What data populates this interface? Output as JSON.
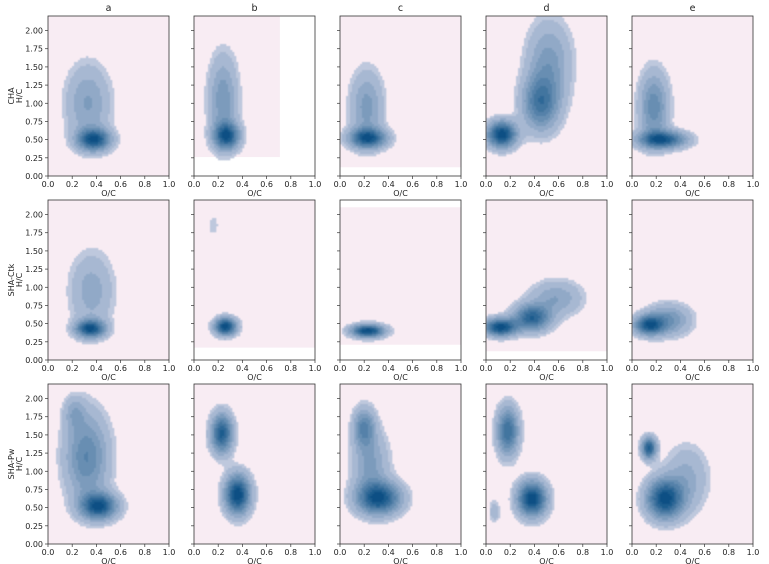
{
  "chart_data": {
    "type": "heatmap",
    "description_note": "5x3 grid of 2D kernel density estimate panels (H/C vs O/C)",
    "columns": [
      "a",
      "b",
      "c",
      "d",
      "e"
    ],
    "rows": [
      "CHA",
      "SHA-Ctk",
      "SHA-Pw"
    ],
    "xlabel": "O/C",
    "ylabel": "H/C",
    "xlim": [
      0.0,
      1.0
    ],
    "ylim": [
      0.0,
      2.2
    ],
    "xticks": [
      "0.0",
      "0.2",
      "0.4",
      "0.6",
      "0.8",
      "1.0"
    ],
    "yticks": [
      "0.00",
      "0.25",
      "0.50",
      "0.75",
      "1.00",
      "1.25",
      "1.50",
      "1.75",
      "2.00"
    ],
    "colors": {
      "background": "#f8ecf3",
      "low": "#dcdcec",
      "high": "#0b4f84",
      "frame": "#333333"
    },
    "panels": [
      {
        "row": 0,
        "col": 0,
        "bg": [
          0.0,
          1.0,
          0.0,
          2.2
        ],
        "peaks": [
          {
            "x": 0.38,
            "y": 0.5,
            "sx": 0.09,
            "sy": 0.1,
            "w": 1.0
          },
          {
            "x": 0.33,
            "y": 1.0,
            "sx": 0.12,
            "sy": 0.35,
            "w": 0.35
          }
        ]
      },
      {
        "row": 0,
        "col": 1,
        "bg": [
          0.0,
          0.71,
          0.26,
          2.2
        ],
        "peaks": [
          {
            "x": 0.27,
            "y": 0.55,
            "sx": 0.07,
            "sy": 0.12,
            "w": 1.0
          },
          {
            "x": 0.24,
            "y": 1.05,
            "sx": 0.08,
            "sy": 0.4,
            "w": 0.45
          }
        ]
      },
      {
        "row": 0,
        "col": 2,
        "bg": [
          0.0,
          1.0,
          0.12,
          2.2
        ],
        "peaks": [
          {
            "x": 0.23,
            "y": 0.52,
            "sx": 0.1,
            "sy": 0.09,
            "w": 1.0
          },
          {
            "x": 0.22,
            "y": 0.95,
            "sx": 0.09,
            "sy": 0.33,
            "w": 0.4
          }
        ]
      },
      {
        "row": 0,
        "col": 3,
        "bg": [
          0.0,
          1.0,
          0.0,
          2.2
        ],
        "peaks": [
          {
            "x": 0.13,
            "y": 0.57,
            "sx": 0.08,
            "sy": 0.12,
            "w": 1.0
          },
          {
            "x": 0.45,
            "y": 1.0,
            "sx": 0.1,
            "sy": 0.25,
            "w": 0.6
          },
          {
            "x": 0.52,
            "y": 1.55,
            "sx": 0.12,
            "sy": 0.38,
            "w": 0.35
          }
        ]
      },
      {
        "row": 0,
        "col": 4,
        "bg": [
          0.0,
          1.0,
          0.0,
          2.2
        ],
        "peaks": [
          {
            "x": 0.25,
            "y": 0.5,
            "sx": 0.13,
            "sy": 0.08,
            "w": 1.0
          },
          {
            "x": 0.18,
            "y": 0.95,
            "sx": 0.08,
            "sy": 0.32,
            "w": 0.55
          }
        ]
      },
      {
        "row": 1,
        "col": 0,
        "bg": [
          0.0,
          1.0,
          0.0,
          2.2
        ],
        "peaks": [
          {
            "x": 0.35,
            "y": 0.43,
            "sx": 0.08,
            "sy": 0.08,
            "w": 1.0
          },
          {
            "x": 0.36,
            "y": 0.95,
            "sx": 0.12,
            "sy": 0.35,
            "w": 0.28
          }
        ]
      },
      {
        "row": 1,
        "col": 1,
        "bg": [
          0.0,
          1.0,
          0.17,
          2.2
        ],
        "peaks": [
          {
            "x": 0.26,
            "y": 0.46,
            "sx": 0.06,
            "sy": 0.08,
            "w": 1.0
          },
          {
            "x": 0.16,
            "y": 1.85,
            "sx": 0.03,
            "sy": 0.1,
            "w": 0.1
          }
        ]
      },
      {
        "row": 1,
        "col": 2,
        "bg": [
          0.0,
          1.0,
          0.21,
          2.1
        ],
        "peaks": [
          {
            "x": 0.23,
            "y": 0.4,
            "sx": 0.09,
            "sy": 0.06,
            "w": 1.0
          }
        ]
      },
      {
        "row": 1,
        "col": 3,
        "bg": [
          0.0,
          1.0,
          0.12,
          2.2
        ],
        "peaks": [
          {
            "x": 0.12,
            "y": 0.45,
            "sx": 0.09,
            "sy": 0.08,
            "w": 1.0
          },
          {
            "x": 0.38,
            "y": 0.58,
            "sx": 0.1,
            "sy": 0.12,
            "w": 0.8
          },
          {
            "x": 0.58,
            "y": 0.85,
            "sx": 0.14,
            "sy": 0.16,
            "w": 0.3
          }
        ]
      },
      {
        "row": 1,
        "col": 4,
        "bg": [
          0.0,
          1.0,
          0.0,
          2.2
        ],
        "peaks": [
          {
            "x": 0.14,
            "y": 0.48,
            "sx": 0.08,
            "sy": 0.09,
            "w": 1.0
          },
          {
            "x": 0.3,
            "y": 0.55,
            "sx": 0.12,
            "sy": 0.14,
            "w": 0.5
          }
        ]
      },
      {
        "row": 2,
        "col": 0,
        "bg": [
          0.0,
          1.0,
          0.0,
          2.2
        ],
        "peaks": [
          {
            "x": 0.42,
            "y": 0.52,
            "sx": 0.1,
            "sy": 0.12,
            "w": 1.0
          },
          {
            "x": 0.32,
            "y": 1.2,
            "sx": 0.12,
            "sy": 0.4,
            "w": 0.55
          },
          {
            "x": 0.22,
            "y": 1.8,
            "sx": 0.06,
            "sy": 0.15,
            "w": 0.25
          }
        ]
      },
      {
        "row": 2,
        "col": 1,
        "bg": [
          0.0,
          1.0,
          0.0,
          2.2
        ],
        "peaks": [
          {
            "x": 0.23,
            "y": 1.52,
            "sx": 0.06,
            "sy": 0.18,
            "w": 0.75
          },
          {
            "x": 0.36,
            "y": 0.68,
            "sx": 0.07,
            "sy": 0.18,
            "w": 0.9
          }
        ]
      },
      {
        "row": 2,
        "col": 2,
        "bg": [
          0.0,
          1.0,
          0.0,
          2.2
        ],
        "peaks": [
          {
            "x": 0.32,
            "y": 0.63,
            "sx": 0.12,
            "sy": 0.15,
            "w": 1.0
          },
          {
            "x": 0.2,
            "y": 1.6,
            "sx": 0.06,
            "sy": 0.18,
            "w": 0.55
          },
          {
            "x": 0.25,
            "y": 1.1,
            "sx": 0.1,
            "sy": 0.3,
            "w": 0.35
          }
        ]
      },
      {
        "row": 2,
        "col": 3,
        "bg": [
          0.0,
          1.0,
          0.0,
          2.2
        ],
        "peaks": [
          {
            "x": 0.38,
            "y": 0.62,
            "sx": 0.08,
            "sy": 0.16,
            "w": 1.0
          },
          {
            "x": 0.18,
            "y": 1.55,
            "sx": 0.06,
            "sy": 0.22,
            "w": 0.7
          },
          {
            "x": 0.07,
            "y": 0.45,
            "sx": 0.03,
            "sy": 0.1,
            "w": 0.18
          }
        ]
      },
      {
        "row": 2,
        "col": 4,
        "bg": [
          0.0,
          1.0,
          0.0,
          2.2
        ],
        "peaks": [
          {
            "x": 0.14,
            "y": 1.32,
            "sx": 0.04,
            "sy": 0.1,
            "w": 0.9
          },
          {
            "x": 0.27,
            "y": 0.62,
            "sx": 0.1,
            "sy": 0.18,
            "w": 1.0
          },
          {
            "x": 0.45,
            "y": 0.9,
            "sx": 0.12,
            "sy": 0.3,
            "w": 0.25
          }
        ]
      }
    ]
  }
}
